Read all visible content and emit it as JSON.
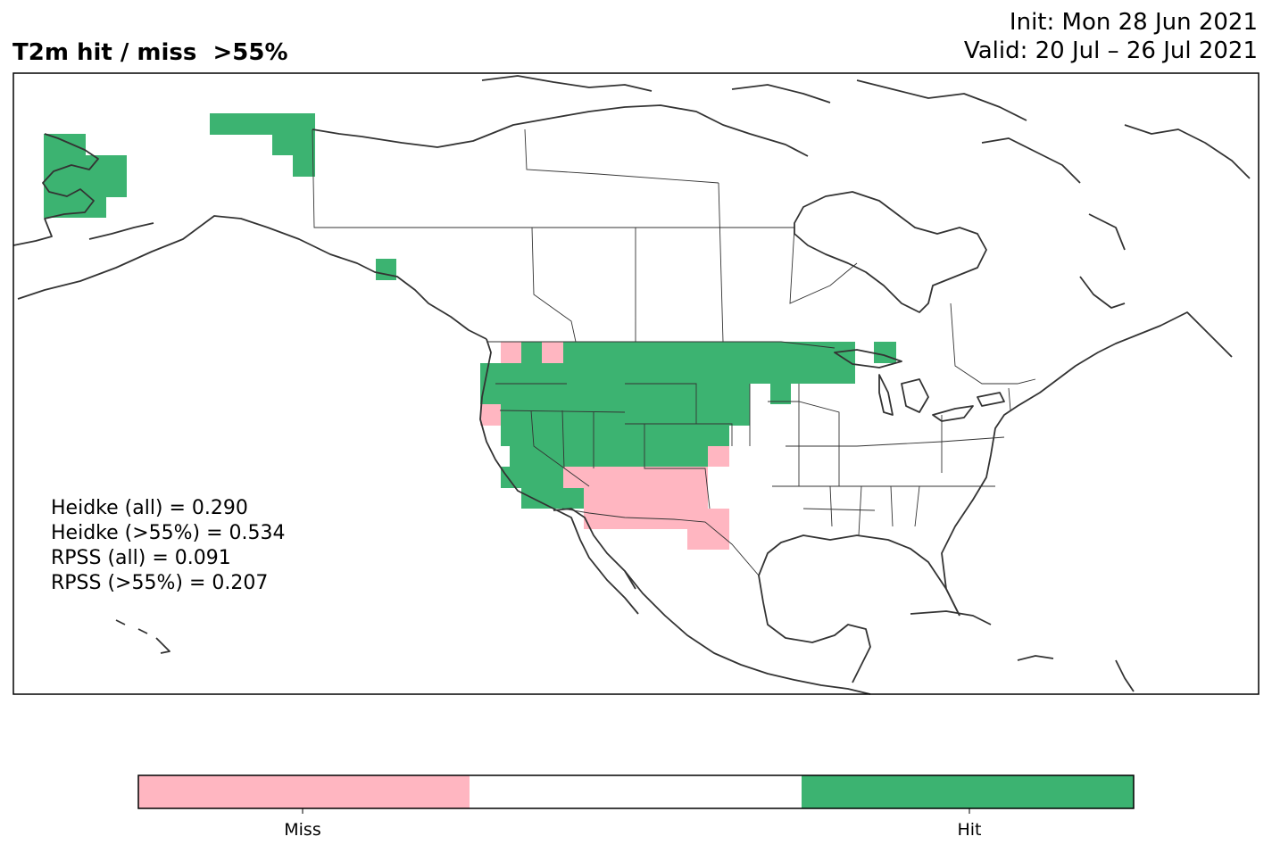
{
  "header": {
    "title": "T2m hit / miss  >55%",
    "init": "Init: Mon 28 Jun 2021",
    "valid": "Valid: 20 Jul – 26 Jul 2021"
  },
  "stats": [
    "Heidke (all) = 0.290",
    "Heidke (>55%) = 0.534",
    "RPSS (all) = 0.091",
    "RPSS (>55%) = 0.207"
  ],
  "colors": {
    "hit": "#3cb371",
    "miss": "#ffb6c1",
    "neutral": "#ffffff",
    "coast": "#333333"
  },
  "legend": {
    "miss_label": "Miss",
    "hit_label": "Hit"
  }
}
